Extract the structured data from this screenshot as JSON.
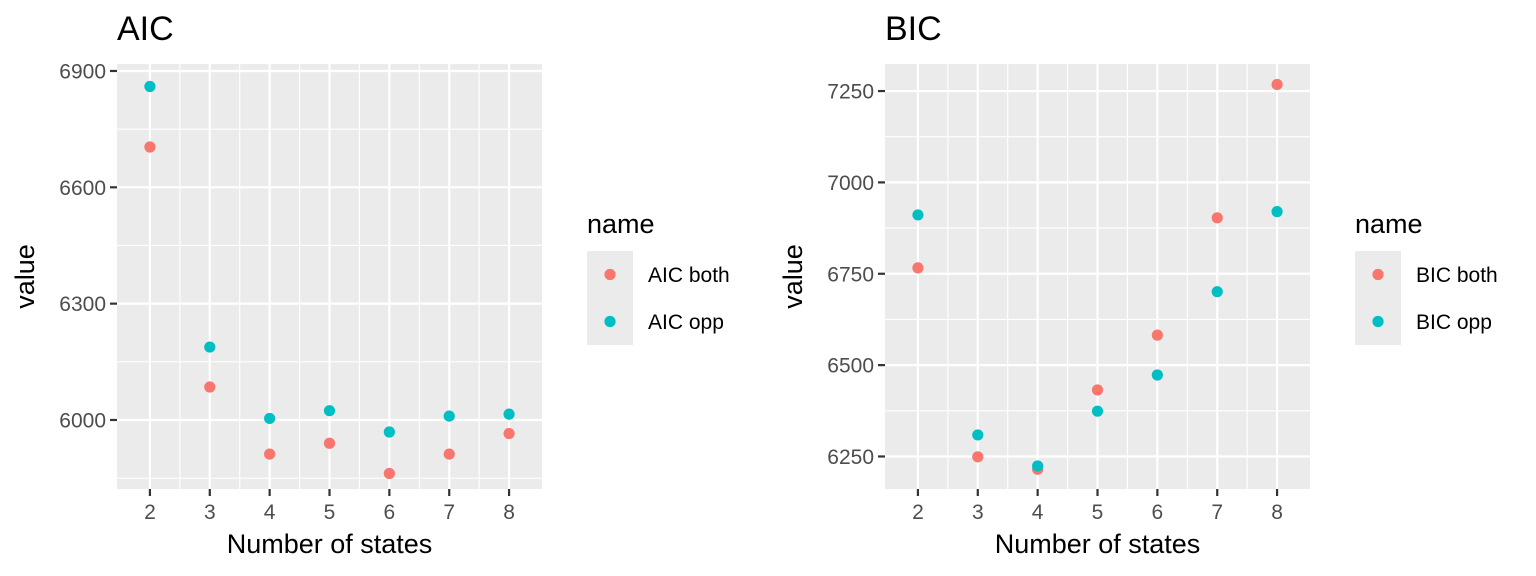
{
  "chart_data": [
    {
      "type": "scatter",
      "title": "AIC",
      "xlabel": "Number of states",
      "ylabel": "value",
      "x": [
        2,
        3,
        4,
        5,
        6,
        7,
        8
      ],
      "xlim": [
        1.45,
        8.55
      ],
      "ylim": [
        5822,
        6918
      ],
      "yticks_major": [
        6000,
        6300,
        6600,
        6900
      ],
      "yticks_minor": [
        5850,
        6150,
        6450,
        6750
      ],
      "grid": true,
      "legend": {
        "title": "name",
        "placement": "right"
      },
      "series": [
        {
          "name": "AIC both",
          "color": "#F8766D",
          "values": [
            6704,
            6085,
            5912,
            5940,
            5862,
            5912,
            5965
          ]
        },
        {
          "name": "AIC opp",
          "color": "#00BFC4",
          "values": [
            6860,
            6188,
            6004,
            6024,
            5969,
            6010,
            6015
          ]
        }
      ]
    },
    {
      "type": "scatter",
      "title": "BIC",
      "xlabel": "Number of states",
      "ylabel": "value",
      "x": [
        2,
        3,
        4,
        5,
        6,
        7,
        8
      ],
      "xlim": [
        1.45,
        8.55
      ],
      "ylim": [
        6161,
        7324
      ],
      "yticks_major": [
        6250,
        6500,
        6750,
        7000,
        7250
      ],
      "yticks_minor": [
        6375,
        6625,
        6875,
        7125
      ],
      "grid": true,
      "legend": {
        "title": "name",
        "placement": "right"
      },
      "series": [
        {
          "name": "BIC both",
          "color": "#F8766D",
          "values": [
            6766,
            6249,
            6215,
            6432,
            6582,
            6903,
            7268
          ]
        },
        {
          "name": "BIC opp",
          "color": "#00BFC4",
          "values": [
            6911,
            6309,
            6224,
            6374,
            6473,
            6701,
            6920
          ]
        }
      ]
    }
  ]
}
